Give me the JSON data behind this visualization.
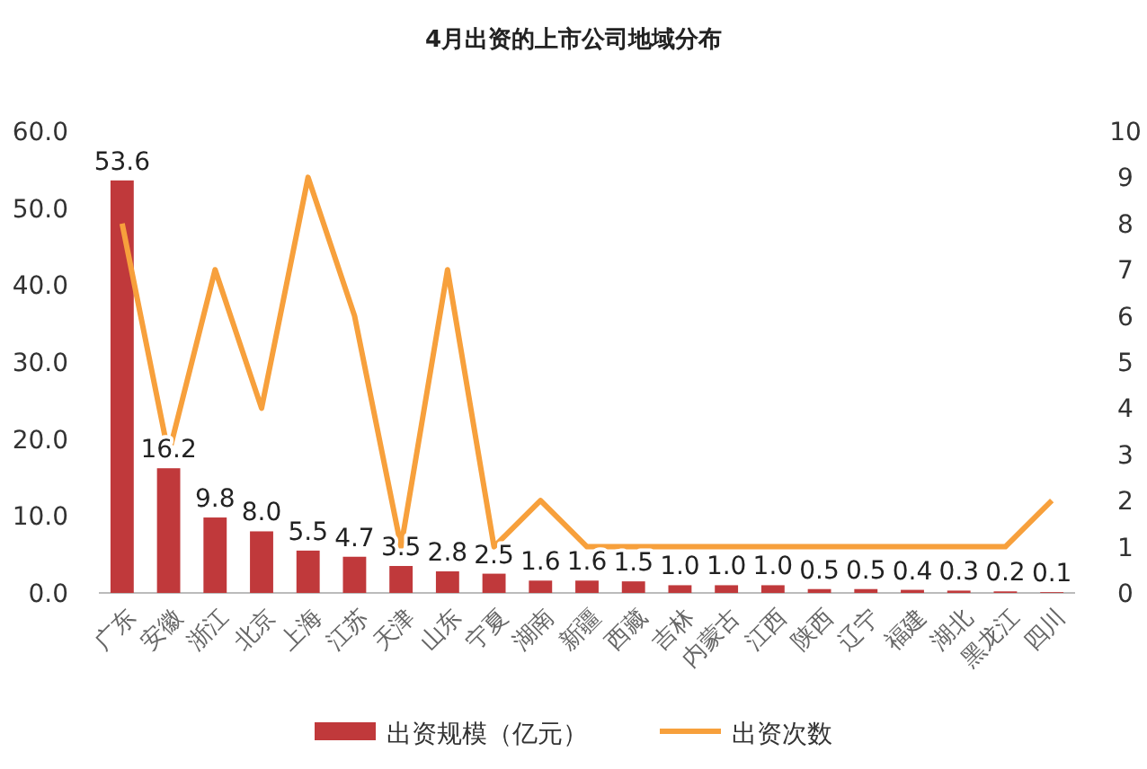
{
  "chart_data": {
    "type": "bar",
    "title": "4月出资的上市公司地域分布",
    "categories": [
      "广东",
      "安徽",
      "浙江",
      "北京",
      "上海",
      "江苏",
      "天津",
      "山东",
      "宁夏",
      "湖南",
      "新疆",
      "西藏",
      "吉林",
      "内蒙古",
      "江西",
      "陕西",
      "辽宁",
      "福建",
      "湖北",
      "黑龙江",
      "四川"
    ],
    "series": [
      {
        "name": "出资规模（亿元）",
        "color": "#c0393b",
        "values": [
          53.6,
          16.2,
          9.8,
          8.0,
          5.5,
          4.7,
          3.5,
          2.8,
          2.5,
          1.6,
          1.6,
          1.5,
          1.0,
          1.0,
          1.0,
          0.5,
          0.5,
          0.4,
          0.3,
          0.2,
          0.1
        ],
        "value_labels": [
          "53.6",
          "16.2",
          "9.8",
          "8.0",
          "5.5",
          "4.7",
          "3.5",
          "2.8",
          "2.5",
          "1.6",
          "1.6",
          "1.5",
          "1.0",
          "1.0",
          "1.0",
          "0.5",
          "0.5",
          "0.4",
          "0.3",
          "0.2",
          "0.1"
        ]
      },
      {
        "name": "出资次数",
        "type": "line",
        "axis": "y2",
        "color": "#f7a03c",
        "values": [
          8,
          3,
          7,
          4,
          9,
          6,
          1,
          7,
          1,
          2,
          1,
          1,
          1,
          1,
          1,
          1,
          1,
          1,
          1,
          1,
          2
        ]
      }
    ],
    "ylim": [
      0,
      60
    ],
    "yticks": [
      {
        "value": 0,
        "label": "0.0"
      },
      {
        "value": 10,
        "label": "10.0"
      },
      {
        "value": 20,
        "label": "20.0"
      },
      {
        "value": 30,
        "label": "30.0"
      },
      {
        "value": 40,
        "label": "40.0"
      },
      {
        "value": 50,
        "label": "50.0"
      },
      {
        "value": 60,
        "label": "60.0"
      }
    ],
    "y2lim": [
      0,
      10
    ],
    "y2ticks": [
      0,
      1,
      2,
      3,
      4,
      5,
      6,
      7,
      8,
      9,
      10
    ],
    "legend": "bottom",
    "grid": false,
    "marker": "none",
    "line_style": "solid"
  }
}
